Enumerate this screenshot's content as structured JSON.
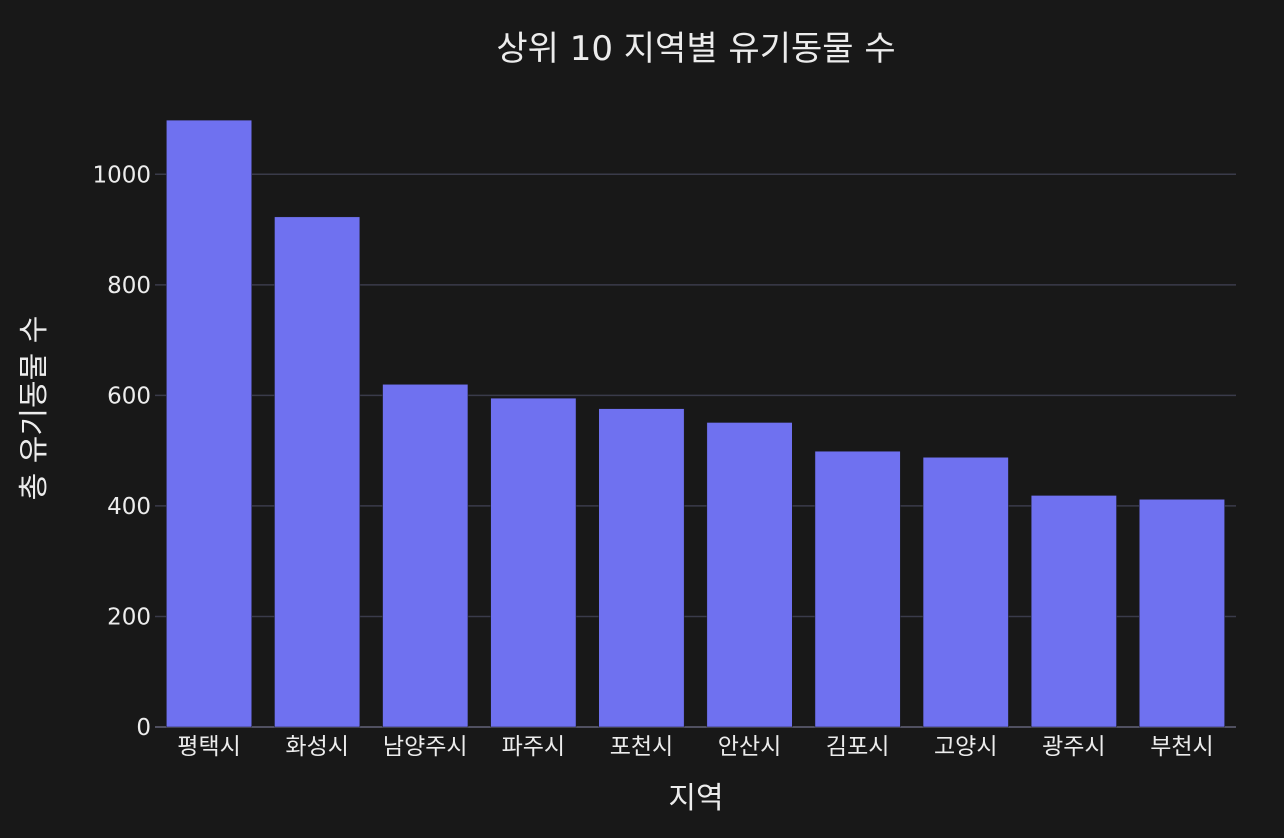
{
  "chart_data": {
    "type": "bar",
    "title": "상위 10 지역별 유기동물 수",
    "xlabel": "지역",
    "ylabel": "총 유기동물 수",
    "categories": [
      "평택시",
      "화성시",
      "남양주시",
      "파주시",
      "포천시",
      "안산시",
      "김포시",
      "고양시",
      "광주시",
      "부천시"
    ],
    "values": [
      1098,
      923,
      620,
      595,
      576,
      551,
      499,
      488,
      419,
      412
    ],
    "ylim": [
      0,
      1100
    ],
    "yticks": [
      0,
      200,
      400,
      600,
      800,
      1000
    ],
    "grid": true
  },
  "colors": {
    "background": "#181818",
    "bar": "#6f71f0",
    "grid": "#3a3b4a",
    "text": "#ececec"
  }
}
